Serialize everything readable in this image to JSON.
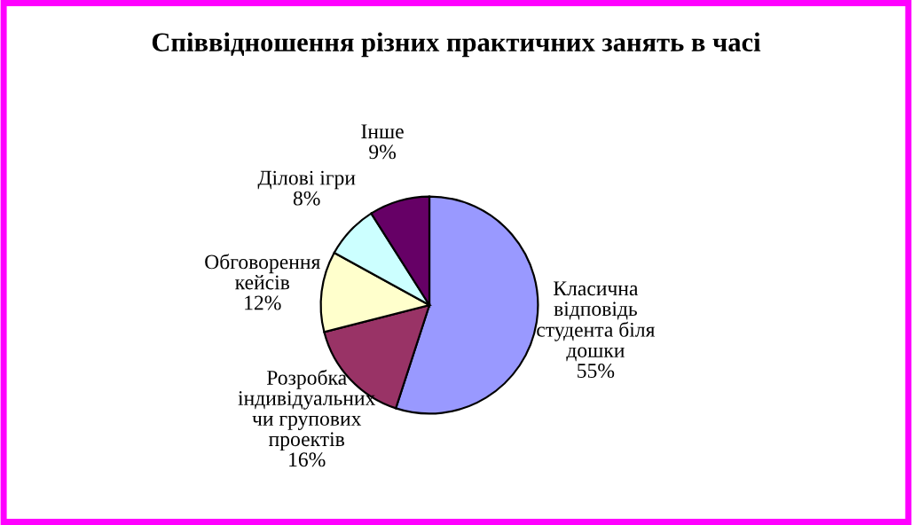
{
  "chart_data": {
    "type": "pie",
    "title": "Співвідношення різних практичних занять в часі",
    "categories": [
      "Класична\nвідповідь\nстудента біля\nдошки",
      "Розробка\nіндивідуальних\nчи групових\nпроектів",
      "Обговорення\nкейсів",
      "Ділові ігри",
      "Інше"
    ],
    "values": [
      55,
      16,
      12,
      8,
      9
    ],
    "value_labels": [
      "55%",
      "16%",
      "12%",
      "8%",
      "9%"
    ],
    "colors": [
      "#9999ff",
      "#993366",
      "#ffffcc",
      "#ccffff",
      "#660066"
    ],
    "legend": false
  }
}
